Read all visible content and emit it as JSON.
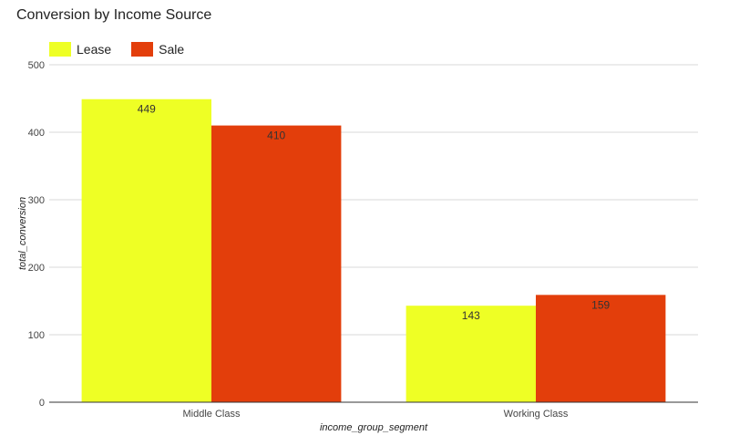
{
  "chart_data": {
    "type": "bar",
    "title": "Conversion by Income Source",
    "xlabel": "income_group_segment",
    "ylabel": "total_conversion",
    "categories": [
      "Middle Class",
      "Working Class"
    ],
    "series": [
      {
        "name": "Lease",
        "values": [
          449,
          143
        ],
        "color": "#eeff25",
        "label_color": "#333333"
      },
      {
        "name": "Sale",
        "values": [
          410,
          159
        ],
        "color": "#e33e0b",
        "label_color": "#ffffff"
      }
    ],
    "ylim": [
      0,
      500
    ],
    "yticks": [
      "0",
      "100",
      "200",
      "300",
      "400",
      "500"
    ],
    "grid": true,
    "legend_position": "top-left"
  }
}
